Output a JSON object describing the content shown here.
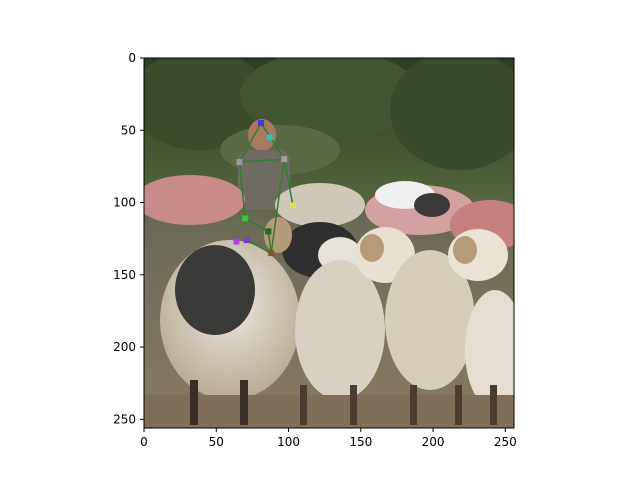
{
  "figure": {
    "x_ticks": [
      "0",
      "50",
      "100",
      "150",
      "200",
      "250"
    ],
    "y_ticks": [
      "0",
      "50",
      "100",
      "150",
      "200",
      "250"
    ]
  },
  "chart_data": {
    "type": "scatter",
    "description_free": true,
    "xlim": [
      0,
      256
    ],
    "ylim": [
      256,
      0
    ],
    "image_extent": [
      0,
      256,
      256,
      0
    ],
    "grid": false,
    "legend": "none",
    "x_tick_values": [
      0,
      50,
      100,
      150,
      200,
      250
    ],
    "y_tick_values": [
      0,
      50,
      100,
      150,
      200,
      250
    ],
    "keypoints": [
      {
        "x": 81,
        "y": 45,
        "color": "#3a3adf"
      },
      {
        "x": 87,
        "y": 55,
        "color": "#21c7c7"
      },
      {
        "x": 97,
        "y": 70,
        "color": "#a0a0a0"
      },
      {
        "x": 66,
        "y": 72,
        "color": "#9a9a9a"
      },
      {
        "x": 103,
        "y": 102,
        "color": "#e0e060"
      },
      {
        "x": 70,
        "y": 111,
        "color": "#33cc33"
      },
      {
        "x": 86,
        "y": 120,
        "color": "#226622"
      },
      {
        "x": 88,
        "y": 135,
        "color": "#7a5a2a"
      },
      {
        "x": 64,
        "y": 127,
        "color": "#b040e0"
      },
      {
        "x": 71,
        "y": 126,
        "color": "#7a3ad8"
      }
    ],
    "skeleton": [
      {
        "x": [
          66,
          97
        ],
        "y": [
          72,
          70
        ],
        "color": "#2e7d2e"
      },
      {
        "x": [
          66,
          70
        ],
        "y": [
          72,
          111
        ],
        "color": "#2e7d2e"
      },
      {
        "x": [
          97,
          103
        ],
        "y": [
          70,
          102
        ],
        "color": "#2e7d2e"
      },
      {
        "x": [
          70,
          86
        ],
        "y": [
          111,
          120
        ],
        "color": "#2e7d2e"
      },
      {
        "x": [
          86,
          88
        ],
        "y": [
          120,
          135
        ],
        "color": "#2e7d2e"
      },
      {
        "x": [
          88,
          71
        ],
        "y": [
          135,
          126
        ],
        "color": "#2e7d2e"
      },
      {
        "x": [
          81,
          66
        ],
        "y": [
          45,
          72
        ],
        "color": "#2e7d2e"
      },
      {
        "x": [
          81,
          97
        ],
        "y": [
          45,
          70
        ],
        "color": "#2e7d2e"
      },
      {
        "x": [
          97,
          88
        ],
        "y": [
          70,
          135
        ],
        "color": "#2e7d2e"
      }
    ]
  },
  "colors": {
    "sky_foliage_dark": "#2f3d24",
    "foliage_mid": "#4f6238",
    "ground": "#8a7a64",
    "wool_light": "#d9d2c4",
    "wool_pink": "#d98f8f"
  }
}
